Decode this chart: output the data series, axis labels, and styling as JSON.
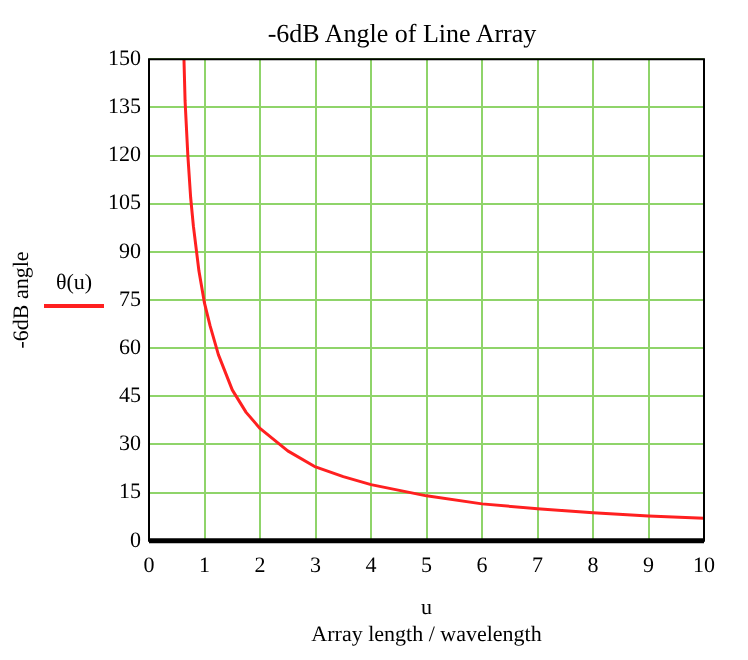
{
  "chart_data": {
    "type": "line",
    "title": "-6dB Angle of Line Array",
    "xlabel": "u\nArray length / wavelength",
    "ylabel": "-6dB angle",
    "series": [
      {
        "name": "θ(u)",
        "color": "#ff2020",
        "x": [
          0.63,
          0.65,
          0.7,
          0.75,
          0.8,
          0.9,
          1,
          1.1,
          1.25,
          1.5,
          1.75,
          2,
          2.5,
          3,
          3.5,
          4,
          5,
          6,
          7,
          8,
          9,
          10
        ],
        "values": [
          150,
          137,
          120,
          107,
          98,
          84,
          74,
          67,
          58,
          47,
          40,
          35,
          28,
          23,
          20,
          17.5,
          14,
          11.5,
          10,
          8.7,
          7.7,
          7
        ]
      }
    ],
    "xlim": [
      0,
      10
    ],
    "xticks": [
      0,
      1,
      2,
      3,
      4,
      5,
      6,
      7,
      8,
      9,
      10
    ],
    "ylim": [
      0,
      150
    ],
    "yticks": [
      0,
      15,
      30,
      45,
      60,
      75,
      90,
      105,
      120,
      135,
      150
    ],
    "grid": true,
    "legend": "left",
    "marker": "none",
    "line_style": "solid"
  }
}
